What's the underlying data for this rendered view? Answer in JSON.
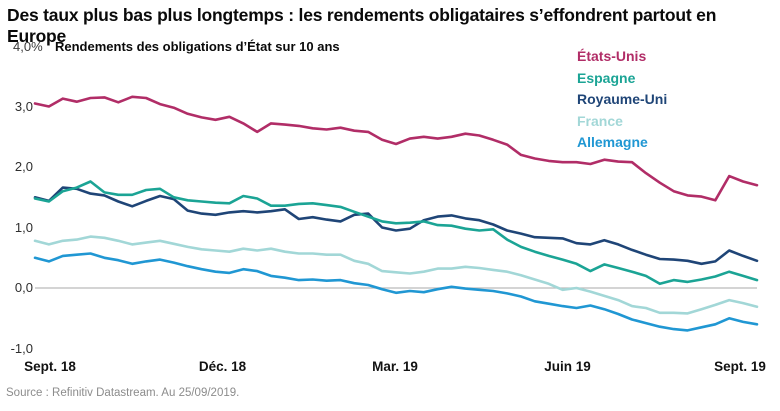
{
  "title": "Des taux plus bas plus longtemps : les rendements obligataires s’effondrent partout en Europe",
  "subtitle": "Rendements des obligations d’État sur 10 ans",
  "source": "Source : Refinitiv Datastream. Au 25/09/2019.",
  "chart_data": {
    "type": "line",
    "title": "Rendements des obligations d’État sur 10 ans",
    "unit": "%",
    "y_top_label": "4,0%",
    "ylim": [
      -1.0,
      4.0
    ],
    "grid": "zero-line-only",
    "zero_line_color": "#bbbbbb",
    "axis_text_color": "#2e2e2e",
    "legend_position": "top-right",
    "yticks": [
      {
        "label": "3,0",
        "value": 3.0
      },
      {
        "label": "2,0",
        "value": 2.0
      },
      {
        "label": "1,0",
        "value": 1.0
      },
      {
        "label": "0,0",
        "value": 0.0
      },
      {
        "label": "-1,0",
        "value": -1.0
      }
    ],
    "xticks": [
      "Sept. 18",
      "Déc. 18",
      "Mar. 19",
      "Juin 19",
      "Sept. 19"
    ],
    "series": [
      {
        "name": "États-Unis",
        "slug": "etats-unis",
        "color": "#b12d67",
        "values": [
          3.05,
          3.0,
          3.13,
          3.08,
          3.14,
          3.15,
          3.07,
          3.16,
          3.14,
          3.04,
          2.98,
          2.88,
          2.82,
          2.78,
          2.83,
          2.72,
          2.58,
          2.72,
          2.7,
          2.68,
          2.64,
          2.62,
          2.65,
          2.6,
          2.58,
          2.45,
          2.38,
          2.47,
          2.5,
          2.47,
          2.5,
          2.55,
          2.52,
          2.45,
          2.37,
          2.2,
          2.14,
          2.1,
          2.08,
          2.08,
          2.05,
          2.12,
          2.09,
          2.08,
          1.9,
          1.74,
          1.6,
          1.53,
          1.51,
          1.45,
          1.85,
          1.76,
          1.7
        ]
      },
      {
        "name": "Espagne",
        "slug": "espagne",
        "color": "#1ba495",
        "values": [
          1.48,
          1.43,
          1.6,
          1.66,
          1.76,
          1.58,
          1.54,
          1.54,
          1.62,
          1.64,
          1.5,
          1.45,
          1.43,
          1.41,
          1.4,
          1.52,
          1.48,
          1.36,
          1.36,
          1.39,
          1.4,
          1.37,
          1.34,
          1.26,
          1.18,
          1.1,
          1.07,
          1.08,
          1.1,
          1.04,
          1.03,
          0.98,
          0.95,
          0.97,
          0.8,
          0.68,
          0.6,
          0.53,
          0.47,
          0.4,
          0.28,
          0.39,
          0.33,
          0.27,
          0.2,
          0.07,
          0.13,
          0.1,
          0.14,
          0.19,
          0.27,
          0.2,
          0.13
        ]
      },
      {
        "name": "Royaume-Uni",
        "slug": "royaume-uni",
        "color": "#1f4577",
        "values": [
          1.5,
          1.44,
          1.66,
          1.64,
          1.56,
          1.53,
          1.43,
          1.35,
          1.44,
          1.52,
          1.47,
          1.28,
          1.23,
          1.21,
          1.25,
          1.27,
          1.25,
          1.27,
          1.3,
          1.14,
          1.17,
          1.13,
          1.1,
          1.21,
          1.23,
          1.0,
          0.95,
          0.98,
          1.12,
          1.18,
          1.2,
          1.15,
          1.12,
          1.05,
          0.95,
          0.9,
          0.84,
          0.83,
          0.82,
          0.74,
          0.72,
          0.79,
          0.72,
          0.63,
          0.55,
          0.48,
          0.47,
          0.45,
          0.4,
          0.44,
          0.62,
          0.53,
          0.45
        ]
      },
      {
        "name": "France",
        "slug": "france",
        "color": "#a2d7d7",
        "values": [
          0.78,
          0.72,
          0.78,
          0.8,
          0.85,
          0.83,
          0.78,
          0.72,
          0.75,
          0.78,
          0.73,
          0.68,
          0.64,
          0.62,
          0.6,
          0.65,
          0.62,
          0.65,
          0.6,
          0.57,
          0.57,
          0.55,
          0.55,
          0.45,
          0.4,
          0.28,
          0.26,
          0.24,
          0.27,
          0.32,
          0.32,
          0.35,
          0.33,
          0.3,
          0.27,
          0.21,
          0.14,
          0.07,
          -0.03,
          0.0,
          -0.06,
          -0.13,
          -0.2,
          -0.3,
          -0.33,
          -0.41,
          -0.41,
          -0.42,
          -0.35,
          -0.28,
          -0.2,
          -0.25,
          -0.31
        ]
      },
      {
        "name": "Allemagne",
        "slug": "allemagne",
        "color": "#2097d3",
        "values": [
          0.5,
          0.44,
          0.53,
          0.55,
          0.57,
          0.5,
          0.46,
          0.4,
          0.44,
          0.47,
          0.42,
          0.36,
          0.31,
          0.27,
          0.25,
          0.31,
          0.28,
          0.2,
          0.17,
          0.13,
          0.14,
          0.12,
          0.13,
          0.08,
          0.05,
          -0.02,
          -0.08,
          -0.05,
          -0.07,
          -0.02,
          0.02,
          -0.01,
          -0.03,
          -0.05,
          -0.09,
          -0.14,
          -0.22,
          -0.26,
          -0.3,
          -0.33,
          -0.29,
          -0.35,
          -0.43,
          -0.52,
          -0.58,
          -0.64,
          -0.68,
          -0.7,
          -0.65,
          -0.6,
          -0.5,
          -0.56,
          -0.6
        ]
      }
    ]
  }
}
